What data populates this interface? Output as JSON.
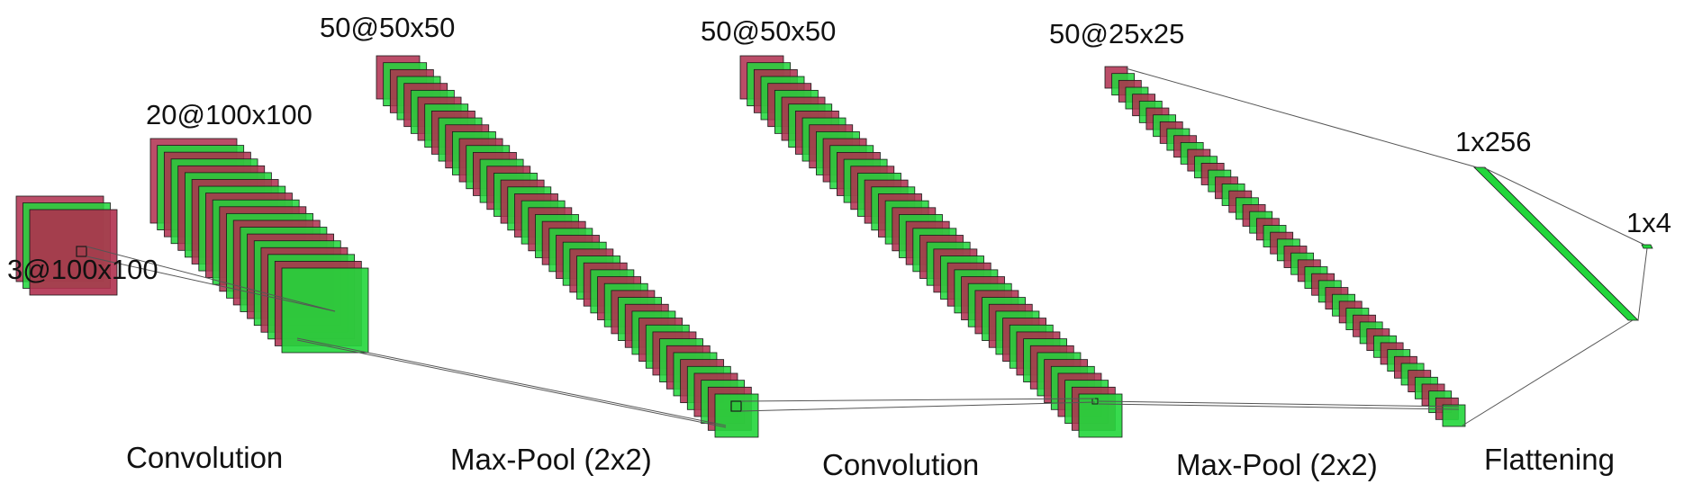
{
  "colors": {
    "red": "#b0304f",
    "green": "#22d63b",
    "edge": "#1a1a1a",
    "line": "#555555"
  },
  "layers": [
    {
      "id": "input",
      "label": "3@100x100",
      "count": 3
    },
    {
      "id": "conv1",
      "label": "20@100x100",
      "count": 20
    },
    {
      "id": "pool1",
      "label": "50@50x50",
      "count": 50
    },
    {
      "id": "conv2",
      "label": "50@50x50",
      "count": 50
    },
    {
      "id": "pool2",
      "label": "50@25x25",
      "count": 50
    },
    {
      "id": "fc1",
      "label": "1x256"
    },
    {
      "id": "fc2",
      "label": "1x4"
    }
  ],
  "operations": [
    "Convolution",
    "Max-Pool (2x2)",
    "Convolution",
    "Max-Pool (2x2)",
    "Flattening"
  ]
}
